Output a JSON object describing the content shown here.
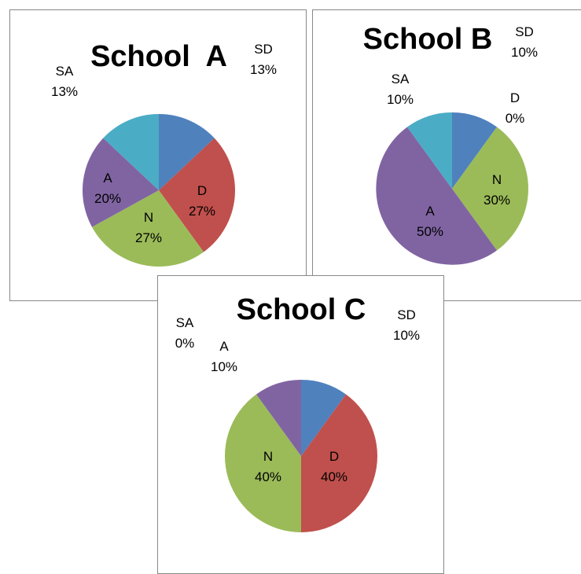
{
  "chart_data": [
    {
      "type": "pie",
      "title": "School  A",
      "categories": [
        "SD",
        "D",
        "N",
        "A",
        "SA"
      ],
      "values": [
        13,
        27,
        27,
        20,
        13
      ],
      "labels": [
        {
          "cat": "SD",
          "pct": "13%"
        },
        {
          "cat": "D",
          "pct": "27%"
        },
        {
          "cat": "N",
          "pct": "27%"
        },
        {
          "cat": "A",
          "pct": "20%"
        },
        {
          "cat": "SA",
          "pct": "13%"
        }
      ]
    },
    {
      "type": "pie",
      "title": "School B",
      "categories": [
        "SD",
        "D",
        "N",
        "A",
        "SA"
      ],
      "values": [
        10,
        0,
        30,
        50,
        10
      ],
      "labels": [
        {
          "cat": "SD",
          "pct": "10%"
        },
        {
          "cat": "D",
          "pct": "0%"
        },
        {
          "cat": "N",
          "pct": "30%"
        },
        {
          "cat": "A",
          "pct": "50%"
        },
        {
          "cat": "SA",
          "pct": "10%"
        }
      ]
    },
    {
      "type": "pie",
      "title": "School C",
      "categories": [
        "SD",
        "D",
        "N",
        "A",
        "SA"
      ],
      "values": [
        10,
        40,
        40,
        10,
        0
      ],
      "labels": [
        {
          "cat": "SD",
          "pct": "10%"
        },
        {
          "cat": "D",
          "pct": "40%"
        },
        {
          "cat": "N",
          "pct": "40%"
        },
        {
          "cat": "A",
          "pct": "10%"
        },
        {
          "cat": "SA",
          "pct": "0%"
        }
      ]
    }
  ],
  "colors": {
    "SD": "#4F81BD",
    "D": "#C0504D",
    "N": "#9BBB59",
    "A": "#8064A2",
    "SA": "#4BACC6"
  }
}
